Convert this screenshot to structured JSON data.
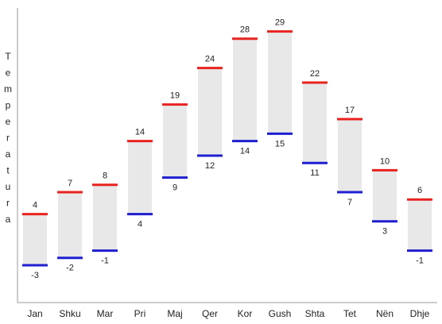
{
  "chart_data": {
    "type": "range-bar",
    "y_label": "Temperatura",
    "categories": [
      "Jan",
      "Shku",
      "Mar",
      "Pri",
      "Maj",
      "Qer",
      "Kor",
      "Gush",
      "Shta",
      "Tet",
      "Nën",
      "Dhje"
    ],
    "series": [
      {
        "color": "#e8231f",
        "values": [
          4,
          7,
          8,
          14,
          19,
          24,
          28,
          29,
          22,
          17,
          10,
          6
        ]
      },
      {
        "color": "#1f1fd1",
        "values": [
          -3,
          -2,
          -1,
          4,
          9,
          12,
          14,
          15,
          11,
          7,
          3,
          -1
        ]
      }
    ],
    "bar_color": "#e8e8e8",
    "ylim": [
      -8,
      32
    ]
  }
}
